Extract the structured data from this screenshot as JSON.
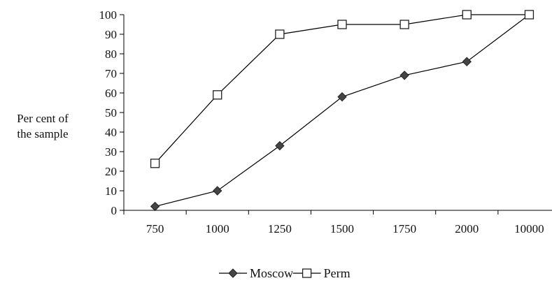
{
  "chart_data": {
    "type": "line",
    "title": "",
    "xlabel": "",
    "ylabel": [
      "Per cent of",
      "the sample"
    ],
    "categories": [
      "750",
      "1000",
      "1250",
      "1500",
      "1750",
      "2000",
      "10000"
    ],
    "ylim": [
      0,
      100
    ],
    "yticks": [
      0,
      10,
      20,
      30,
      40,
      50,
      60,
      70,
      80,
      90,
      100
    ],
    "grid": false,
    "legend": "bottom",
    "series": [
      {
        "name": "Moscow",
        "marker": "diamond-filled",
        "color": "#444444",
        "values": [
          2,
          10,
          33,
          58,
          69,
          76,
          100
        ]
      },
      {
        "name": "Perm",
        "marker": "square-open",
        "color": "#222222",
        "values": [
          24,
          59,
          90,
          95,
          95,
          100,
          100
        ]
      }
    ]
  }
}
